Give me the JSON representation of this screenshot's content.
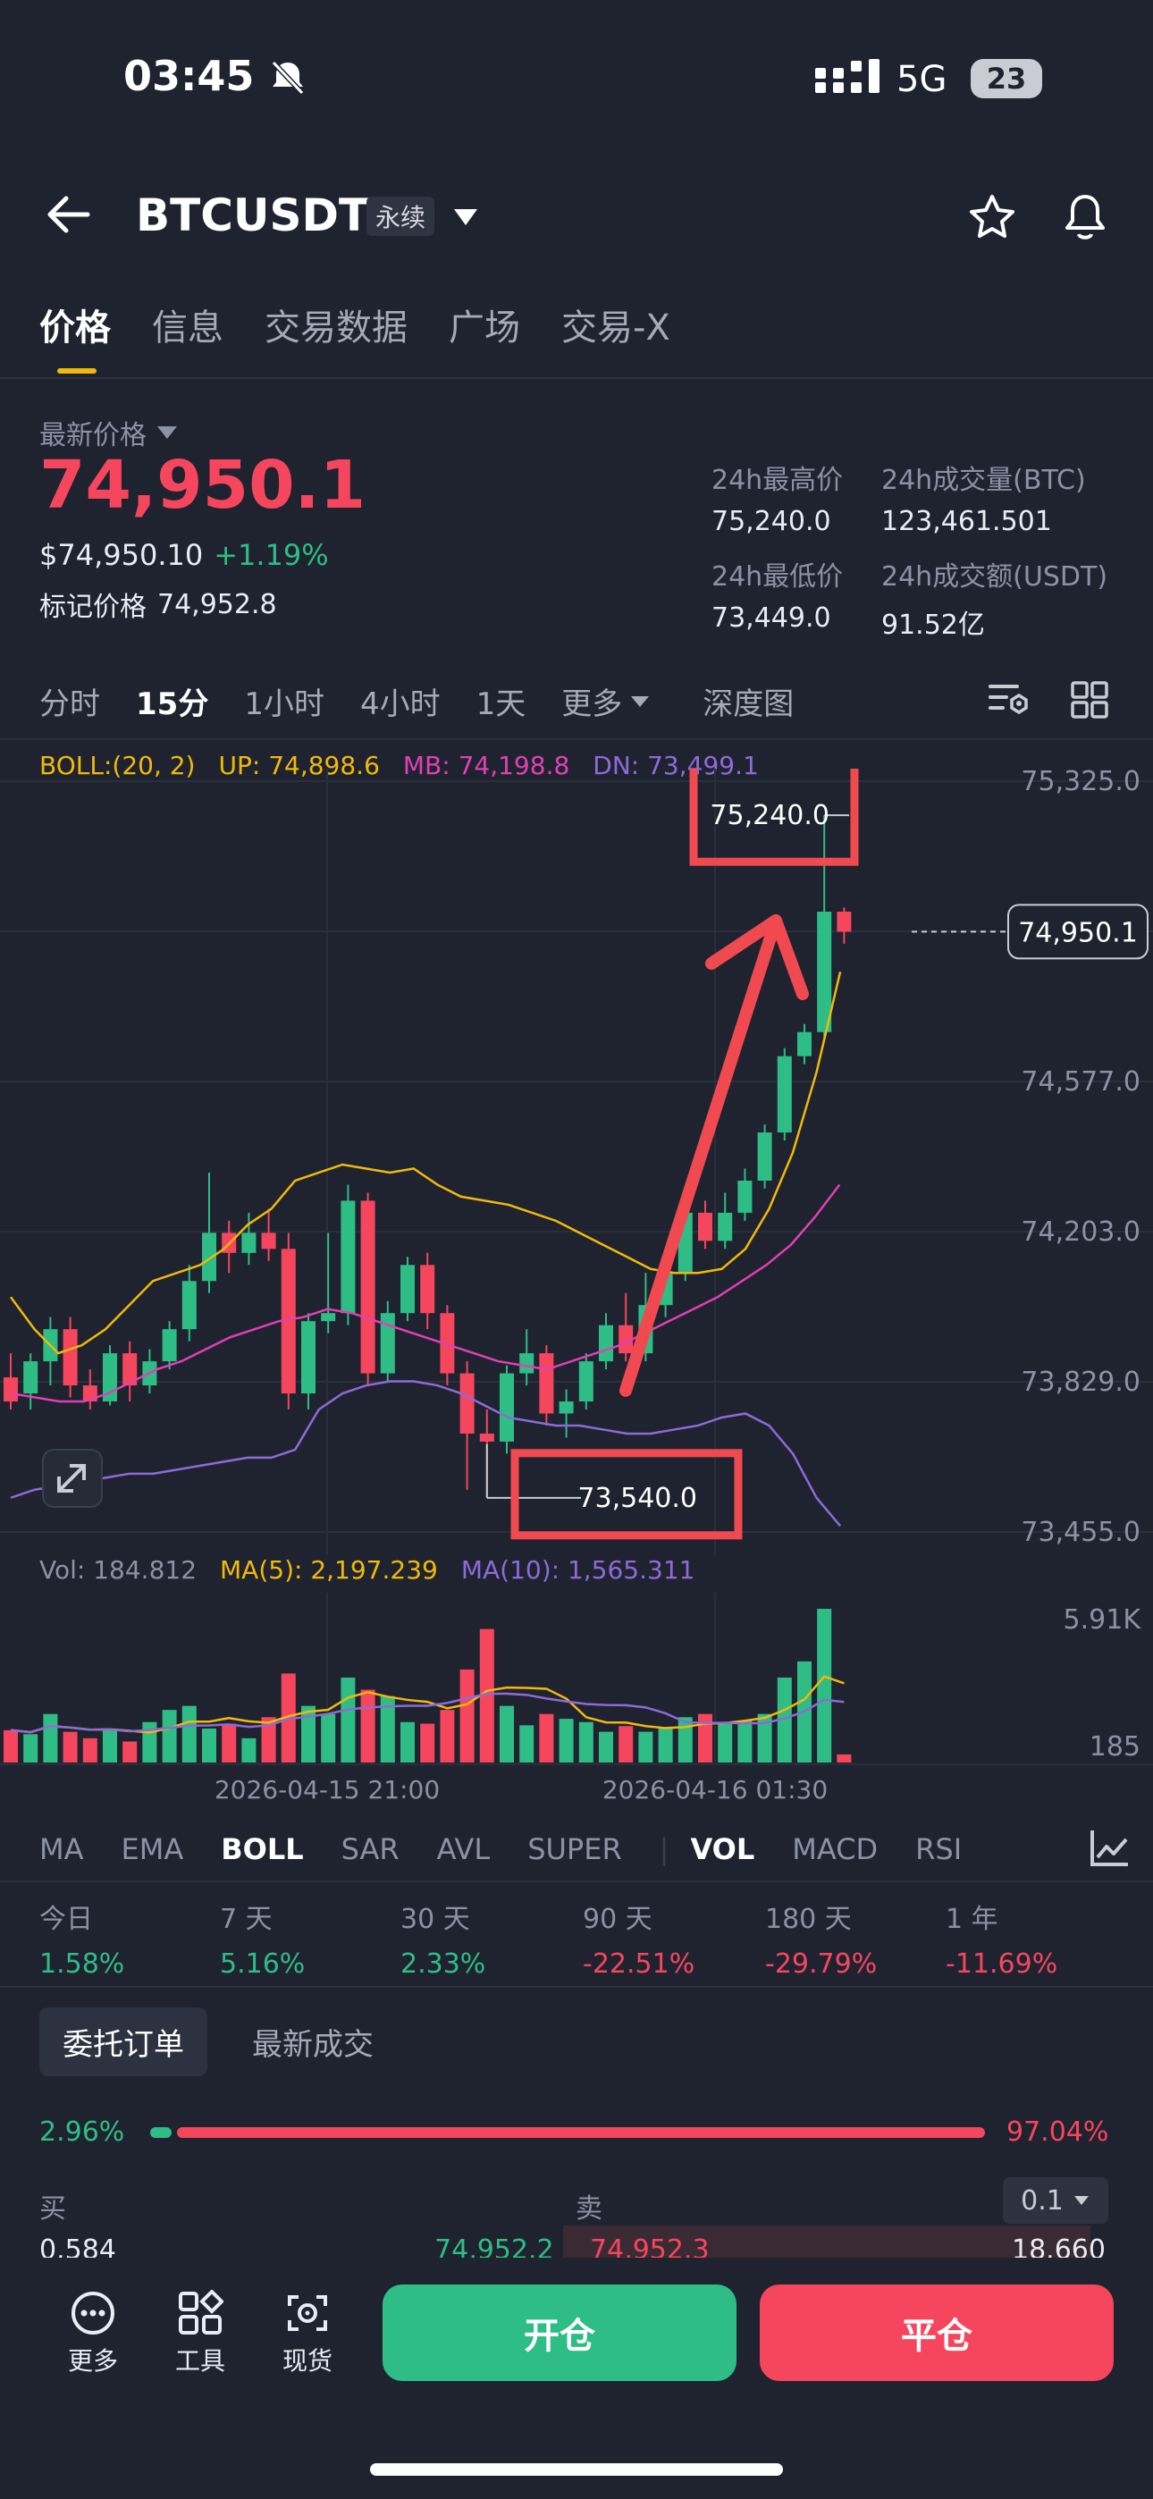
{
  "status_bar": {
    "time": "03:45",
    "network": "5G",
    "battery": "23"
  },
  "header": {
    "symbol": "BTCUSDT",
    "contract_tag": "永续"
  },
  "tabs": [
    {
      "label": "价格",
      "active": true
    },
    {
      "label": "信息",
      "active": false
    },
    {
      "label": "交易数据",
      "active": false
    },
    {
      "label": "广场",
      "active": false
    },
    {
      "label": "交易-X",
      "active": false
    }
  ],
  "price": {
    "last_label": "最新价格",
    "last": "74,950.1",
    "usd": "$74,950.10",
    "change": "+1.19%",
    "mark_label": "标记价格",
    "mark": "74,952.8"
  },
  "stats": {
    "high_label": "24h最高价",
    "high": "75,240.0",
    "vol_btc_label": "24h成交量(BTC)",
    "vol_btc": "123,461.501",
    "low_label": "24h最低价",
    "low": "73,449.0",
    "vol_usdt_label": "24h成交额(USDT)",
    "vol_usdt": "91.52亿"
  },
  "timeframes": {
    "items": [
      "分时",
      "15分",
      "1小时",
      "4小时",
      "1天",
      "更多"
    ],
    "active": "15分",
    "depth": "深度图"
  },
  "boll": {
    "label": "BOLL:(20, 2)",
    "up": "UP: 74,898.6",
    "mb": "MB: 74,198.8",
    "dn": "DN: 73,499.1"
  },
  "chart_data": {
    "type": "candlestick",
    "y_ticks": [
      "75,325.0",
      "74,951.0",
      "74,577.0",
      "74,203.0",
      "73,829.0",
      "73,455.0"
    ],
    "ylim": [
      73455,
      75325
    ],
    "x_ticks": [
      "2026-04-15 21:00",
      "2026-04-16 01:30"
    ],
    "current_price_label": "74,950.1",
    "high_annotation": "75,240.0",
    "low_annotation": "73,540.0",
    "volume": {
      "label": "Vol: 184.812",
      "ma5": "MA(5): 2,197.239",
      "ma10": "MA(10): 1,565.311",
      "ticks": [
        "5.91K",
        "185"
      ]
    },
    "colors": {
      "up": "#2ebd85",
      "down": "#f6465d",
      "boll_up": "#f0b90b",
      "boll_mb": "#e040b5",
      "boll_dn": "#8e6ad8"
    }
  },
  "indicators": {
    "items": [
      "MA",
      "EMA",
      "BOLL",
      "SAR",
      "AVL",
      "SUPER",
      "VOL",
      "MACD",
      "RSI"
    ],
    "active": [
      "BOLL",
      "VOL"
    ]
  },
  "performance": [
    {
      "label": "今日",
      "value": "1.58%"
    },
    {
      "label": "7 天",
      "value": "5.16%"
    },
    {
      "label": "30 天",
      "value": "2.33%"
    },
    {
      "label": "90 天",
      "value": "-22.51%"
    },
    {
      "label": "180 天",
      "value": "-29.79%"
    },
    {
      "label": "1 年",
      "value": "-11.69%"
    }
  ],
  "orders": {
    "tab_active": "委托订单",
    "tab_other": "最新成交",
    "buy_pct": "2.96%",
    "sell_pct": "97.04%",
    "buy_label": "买",
    "sell_label": "卖",
    "step": "0.1",
    "buy_qty": "0.584",
    "buy_price": "74,952.2",
    "sell_price": "74,952.3",
    "sell_qty": "18.660"
  },
  "bottom_bar": {
    "more": "更多",
    "tools": "工具",
    "spot": "现货",
    "open": "开仓",
    "close": "平仓"
  }
}
